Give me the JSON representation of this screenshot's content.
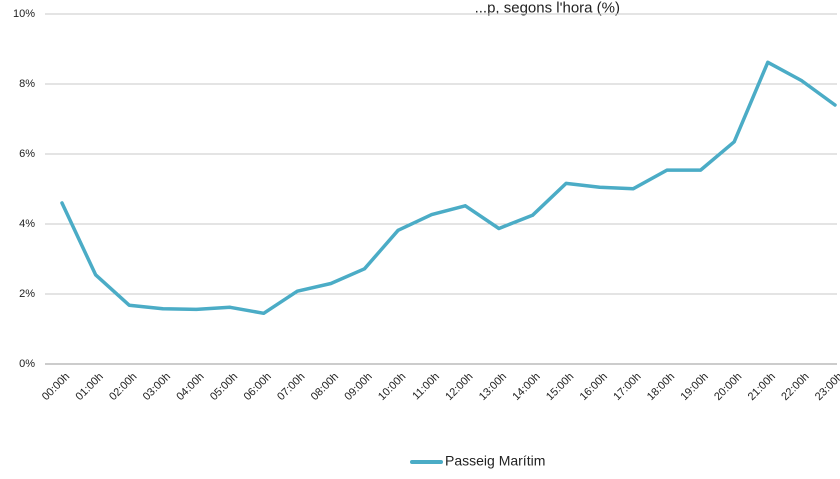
{
  "chart_data": {
    "type": "line",
    "title": "",
    "title_partial_visible": "...p, segons l'hora (%)",
    "xlabel": "",
    "ylabel": "",
    "categories": [
      "00:00h",
      "01:00h",
      "02:00h",
      "03:00h",
      "04:00h",
      "05:00h",
      "06:00h",
      "07:00h",
      "08:00h",
      "09:00h",
      "10:00h",
      "11:00h",
      "12:00h",
      "13:00h",
      "14:00h",
      "15:00h",
      "16:00h",
      "17:00h",
      "18:00h",
      "19:00h",
      "20:00h",
      "21:00h",
      "22:00h",
      "23:00h"
    ],
    "series": [
      {
        "name": "Passeig Marítim",
        "color": "#4BACC6",
        "values": [
          4.6,
          2.55,
          1.68,
          1.58,
          1.56,
          1.62,
          1.45,
          2.08,
          2.3,
          2.72,
          3.82,
          4.27,
          4.52,
          3.87,
          4.25,
          5.16,
          5.05,
          5.01,
          5.54,
          5.54,
          6.35,
          8.62,
          8.1,
          7.4
        ]
      }
    ],
    "ylim": [
      0,
      10
    ],
    "y_ticks": [
      0,
      2,
      4,
      6,
      8,
      10
    ],
    "y_tick_labels": [
      "0%",
      "2%",
      "4%",
      "6%",
      "8%",
      "10%"
    ],
    "grid": true,
    "legend_position": "bottom-center",
    "gridline_color": "#c8c8c8"
  }
}
